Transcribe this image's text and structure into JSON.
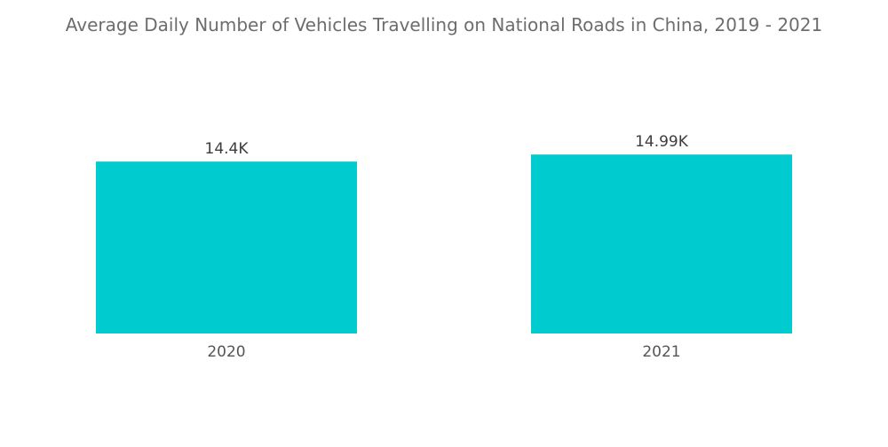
{
  "title": "Average Daily Number of Vehicles Travelling on National Roads in China, 2019 - 2021",
  "colors": {
    "bar": "#00cccf"
  },
  "chart_data": {
    "type": "bar",
    "title": "Average Daily Number of Vehicles Travelling on National Roads in China, 2019 - 2021",
    "categories": [
      "2020",
      "2021"
    ],
    "values": [
      14400,
      14990
    ],
    "data_labels": [
      "14.4K",
      "14.99K"
    ],
    "xlabel": "",
    "ylabel": "",
    "ylim": [
      0,
      15600
    ],
    "grid": false,
    "legend": "none"
  }
}
